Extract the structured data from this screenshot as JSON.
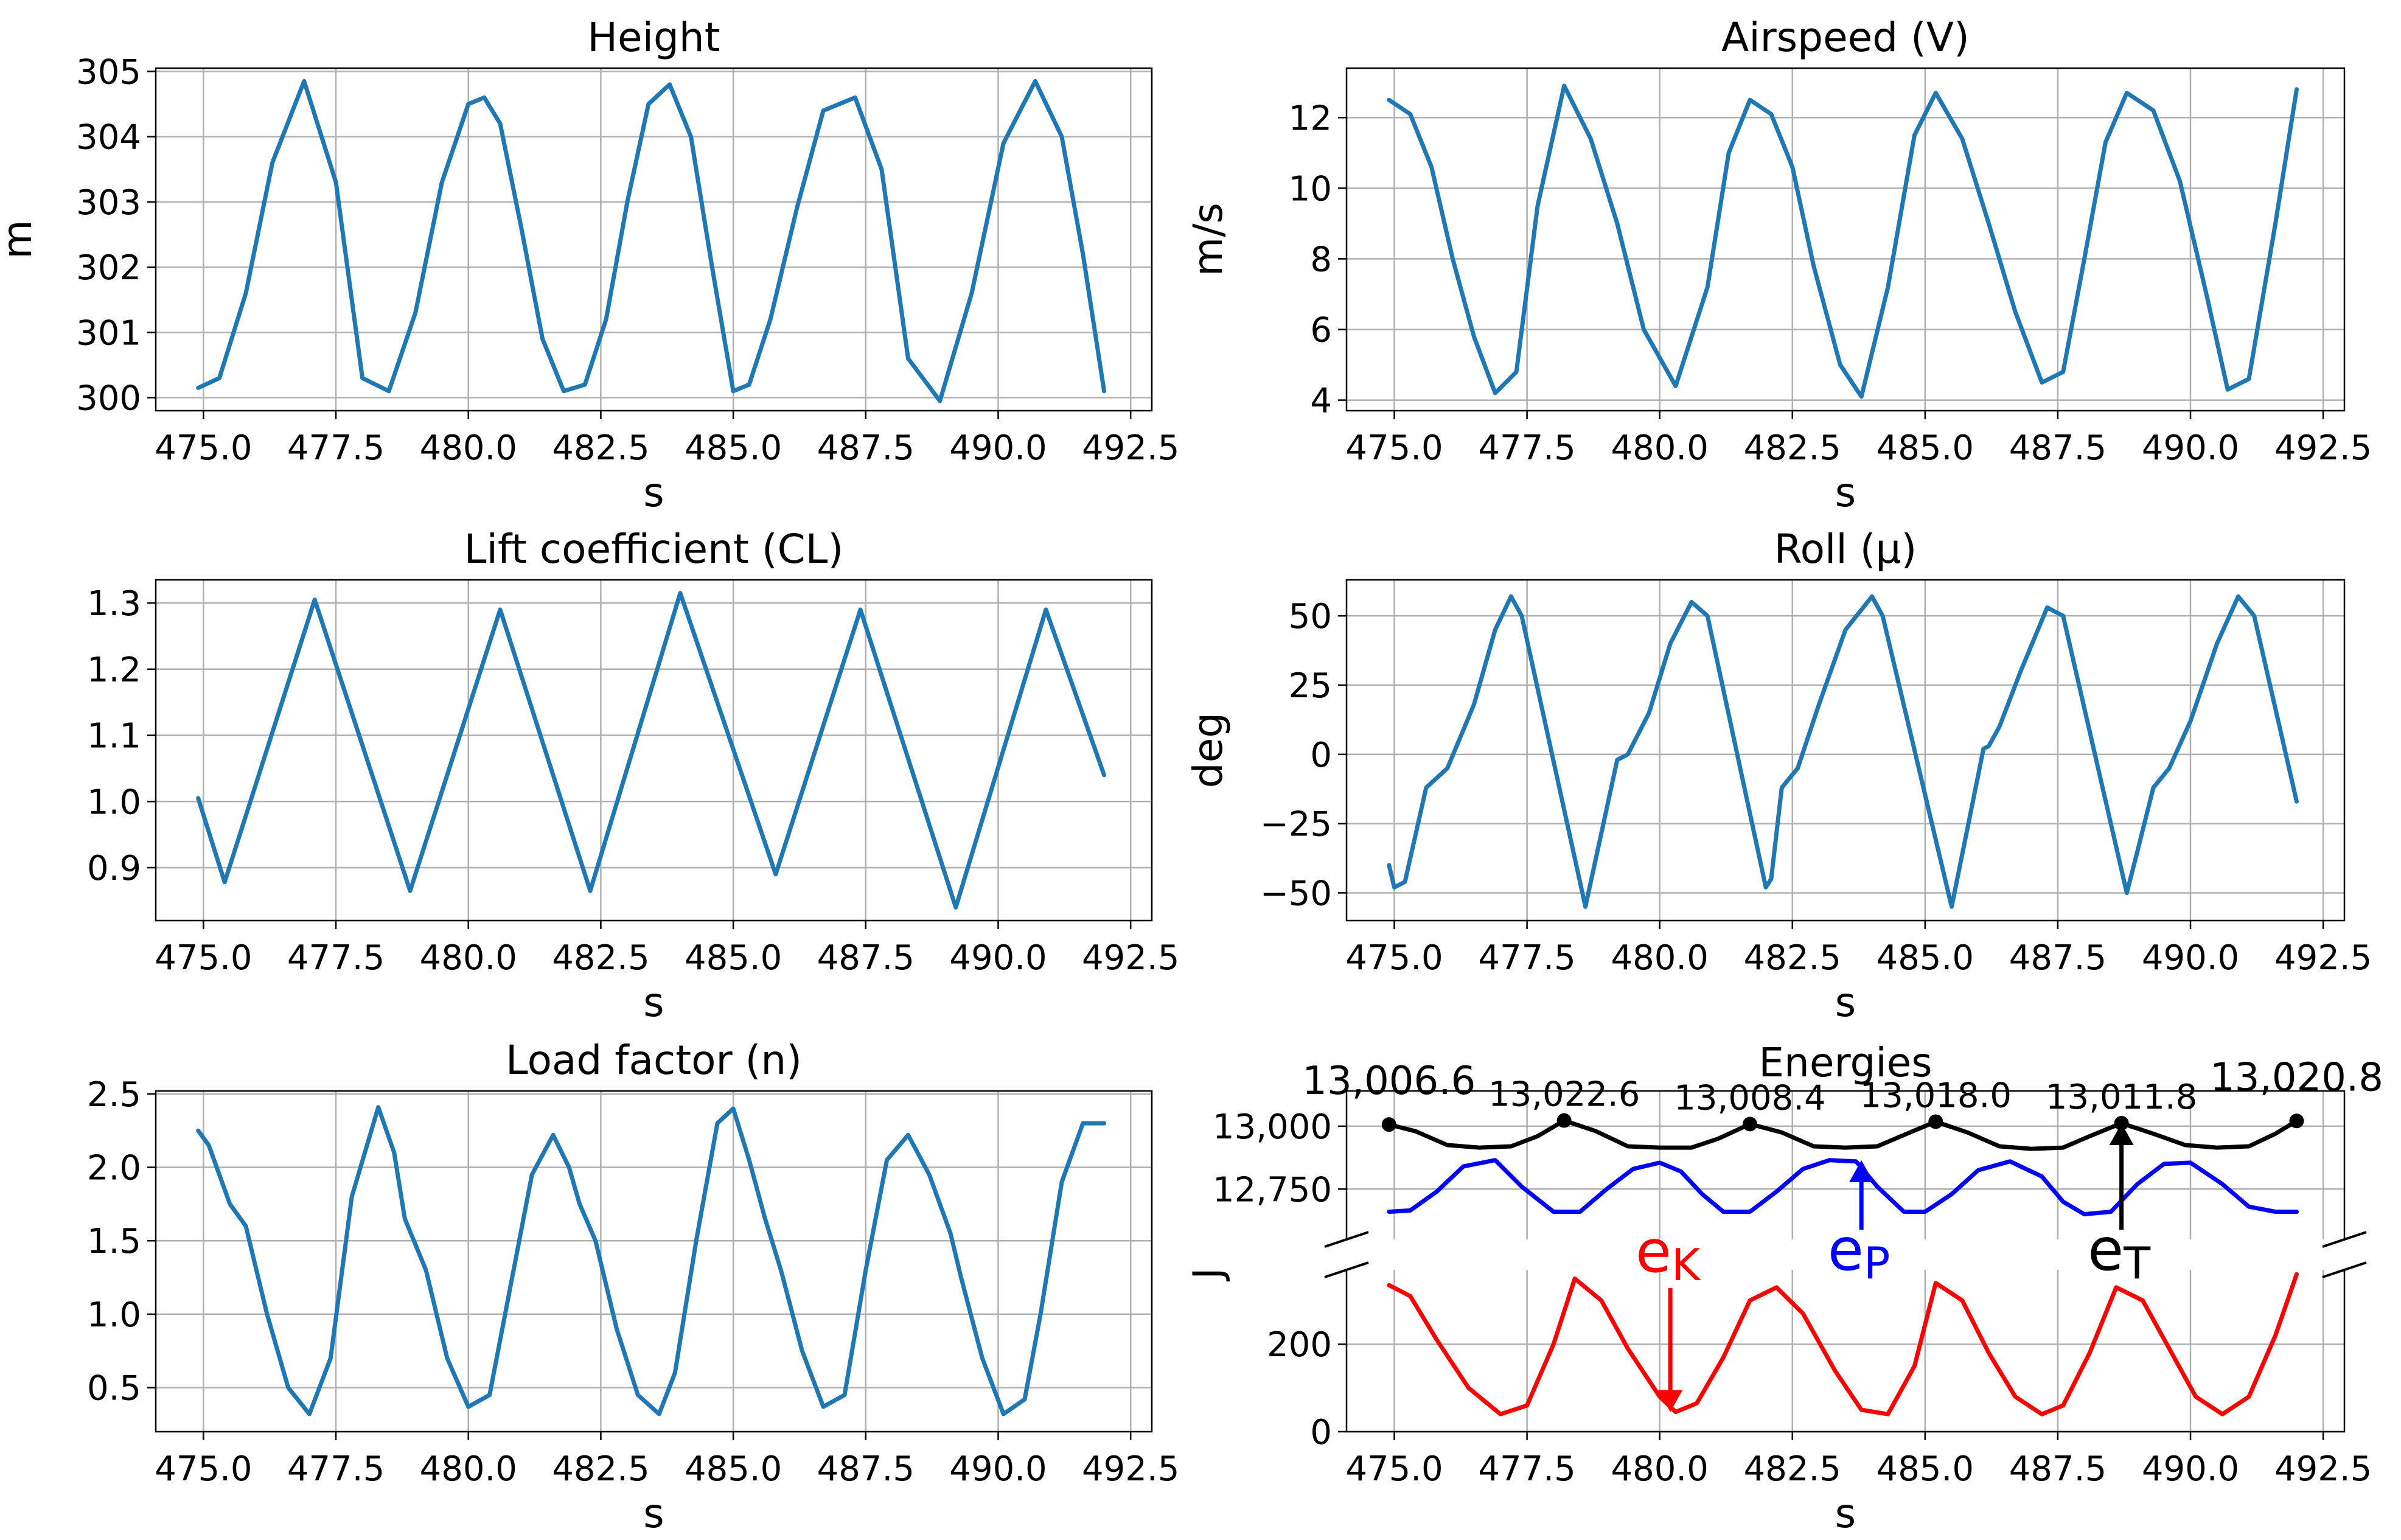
{
  "colors": {
    "line": "#1f77b4",
    "kinetic": "#ff0000",
    "potential": "#0000ff",
    "total": "#000000",
    "grid": "#b0b0b0"
  },
  "x_tick_labels": [
    "475.0",
    "477.5",
    "480.0",
    "482.5",
    "485.0",
    "487.5",
    "490.0",
    "492.5"
  ],
  "chart_data": [
    {
      "id": "height",
      "type": "line",
      "title": "Height",
      "xlabel": "s",
      "ylabel": "m",
      "xlim": [
        474.1,
        492.9
      ],
      "ylim": [
        299.8,
        305.05
      ],
      "yticks": [
        300,
        301,
        302,
        303,
        304,
        305
      ],
      "ytick_labels": [
        "300",
        "301",
        "302",
        "303",
        "304",
        "305"
      ],
      "grid": true,
      "series": [
        {
          "name": "Height",
          "x": [
            474.9,
            475.3,
            475.8,
            476.3,
            476.9,
            477.5,
            478.0,
            478.5,
            479.0,
            479.5,
            480.0,
            480.3,
            480.6,
            481.0,
            481.4,
            481.8,
            482.2,
            482.6,
            483.0,
            483.4,
            483.8,
            484.2,
            484.6,
            485.0,
            485.3,
            485.7,
            486.2,
            486.7,
            487.3,
            487.8,
            488.3,
            488.9,
            489.5,
            490.1,
            490.7,
            491.2,
            491.6,
            492.0
          ],
          "y": [
            300.15,
            300.3,
            301.6,
            303.6,
            304.85,
            303.3,
            300.3,
            300.1,
            301.3,
            303.3,
            304.5,
            304.6,
            304.2,
            302.6,
            300.9,
            300.1,
            300.2,
            301.2,
            303.0,
            304.5,
            304.8,
            304.0,
            302.0,
            300.1,
            300.2,
            301.2,
            302.9,
            304.4,
            304.6,
            303.5,
            300.6,
            299.95,
            301.6,
            303.9,
            304.85,
            304.0,
            302.2,
            300.1
          ]
        }
      ]
    },
    {
      "id": "airspeed",
      "type": "line",
      "title": "Airspeed (V)",
      "xlabel": "s",
      "ylabel": "m/s",
      "xlim": [
        474.1,
        492.9
      ],
      "ylim": [
        3.7,
        13.4
      ],
      "yticks": [
        4,
        6,
        8,
        10,
        12
      ],
      "ytick_labels": [
        "4",
        "6",
        "8",
        "10",
        "12"
      ],
      "grid": true,
      "series": [
        {
          "name": "Airspeed",
          "x": [
            474.9,
            475.3,
            475.7,
            476.1,
            476.5,
            476.9,
            477.3,
            477.7,
            478.2,
            478.7,
            479.2,
            479.7,
            480.3,
            480.9,
            481.3,
            481.7,
            482.1,
            482.5,
            482.9,
            483.4,
            483.8,
            484.3,
            484.8,
            485.2,
            485.7,
            486.2,
            486.7,
            487.2,
            487.6,
            488.0,
            488.4,
            488.8,
            489.3,
            489.8,
            490.3,
            490.7,
            491.1,
            491.6,
            492.0
          ],
          "y": [
            12.5,
            12.1,
            10.6,
            8.0,
            5.8,
            4.2,
            4.8,
            9.5,
            12.9,
            11.4,
            9.0,
            6.0,
            4.4,
            7.2,
            11.0,
            12.5,
            12.1,
            10.6,
            7.8,
            5.0,
            4.1,
            7.2,
            11.5,
            12.7,
            11.4,
            9.0,
            6.5,
            4.5,
            4.8,
            8.0,
            11.3,
            12.7,
            12.2,
            10.2,
            7.0,
            4.3,
            4.6,
            9.0,
            12.8
          ]
        }
      ]
    },
    {
      "id": "lift",
      "type": "line",
      "title": "Lift coefficient (CL)",
      "xlabel": "s",
      "ylabel": "",
      "xlim": [
        474.1,
        492.9
      ],
      "ylim": [
        0.82,
        1.335
      ],
      "yticks": [
        0.9,
        1.0,
        1.1,
        1.2,
        1.3
      ],
      "ytick_labels": [
        "0.9",
        "1.0",
        "1.1",
        "1.2",
        "1.3"
      ],
      "grid": true,
      "series": [
        {
          "name": "CL",
          "x": [
            474.9,
            475.4,
            477.1,
            478.9,
            480.6,
            482.3,
            484.0,
            485.8,
            487.4,
            489.2,
            490.9,
            492.0
          ],
          "y": [
            1.005,
            0.878,
            1.305,
            0.865,
            1.29,
            0.865,
            1.315,
            0.89,
            1.29,
            0.84,
            1.29,
            1.04
          ]
        }
      ]
    },
    {
      "id": "roll",
      "type": "line",
      "title": "Roll (μ)",
      "xlabel": "s",
      "ylabel": "deg",
      "xlim": [
        474.1,
        492.9
      ],
      "ylim": [
        -60,
        63
      ],
      "yticks": [
        -50,
        -25,
        0,
        25,
        50
      ],
      "ytick_labels": [
        "−50",
        "−25",
        "0",
        "25",
        "50"
      ],
      "grid": true,
      "series": [
        {
          "name": "Roll",
          "x": [
            474.9,
            475.0,
            475.2,
            475.6,
            476.0,
            476.5,
            476.9,
            477.2,
            477.4,
            478.6,
            479.2,
            479.4,
            479.8,
            480.2,
            480.6,
            480.9,
            482.0,
            482.1,
            482.3,
            482.6,
            483.0,
            483.5,
            484.0,
            484.2,
            485.5,
            486.1,
            486.2,
            486.4,
            486.8,
            487.3,
            487.6,
            488.8,
            489.0,
            489.3,
            489.6,
            490.0,
            490.5,
            490.9,
            491.2,
            492.0
          ],
          "y": [
            -40,
            -48,
            -46,
            -12,
            -5,
            18,
            45,
            57,
            50,
            -55,
            -2,
            0,
            15,
            40,
            55,
            50,
            -48,
            -45,
            -12,
            -5,
            18,
            45,
            57,
            50,
            -55,
            2,
            3,
            10,
            30,
            53,
            50,
            -50,
            -35,
            -12,
            -5,
            12,
            40,
            57,
            50,
            -17
          ]
        }
      ]
    },
    {
      "id": "load",
      "type": "line",
      "title": "Load factor (n)",
      "xlabel": "s",
      "ylabel": "",
      "xlim": [
        474.1,
        492.9
      ],
      "ylim": [
        0.2,
        2.52
      ],
      "yticks": [
        0.5,
        1.0,
        1.5,
        2.0,
        2.5
      ],
      "ytick_labels": [
        "0.5",
        "1.0",
        "1.5",
        "2.0",
        "2.5"
      ],
      "grid": true,
      "series": [
        {
          "name": "n",
          "x": [
            474.9,
            475.1,
            475.5,
            475.8,
            476.2,
            476.6,
            477.0,
            477.4,
            477.8,
            478.3,
            478.6,
            478.8,
            479.2,
            479.6,
            480.0,
            480.4,
            480.8,
            481.2,
            481.6,
            481.9,
            482.1,
            482.4,
            482.8,
            483.2,
            483.6,
            483.9,
            484.3,
            484.7,
            485.0,
            485.3,
            485.6,
            485.9,
            486.3,
            486.7,
            487.1,
            487.5,
            487.9,
            488.3,
            488.7,
            488.9,
            489.1,
            489.3,
            489.7,
            490.1,
            490.5,
            490.8,
            491.2,
            491.6,
            492.0
          ],
          "y": [
            2.25,
            2.15,
            1.75,
            1.6,
            1.0,
            0.5,
            0.32,
            0.7,
            1.8,
            2.41,
            2.1,
            1.65,
            1.3,
            0.7,
            0.37,
            0.45,
            1.2,
            1.95,
            2.22,
            2.0,
            1.75,
            1.5,
            0.9,
            0.45,
            0.32,
            0.6,
            1.5,
            2.3,
            2.4,
            2.05,
            1.65,
            1.3,
            0.75,
            0.37,
            0.45,
            1.3,
            2.05,
            2.22,
            1.95,
            1.75,
            1.55,
            1.25,
            0.7,
            0.32,
            0.42,
            1.0,
            1.9,
            2.3,
            2.3
          ]
        }
      ]
    },
    {
      "id": "energies",
      "type": "line",
      "title": "Energies",
      "xlabel": "s",
      "ylabel": "J",
      "xlim": [
        474.1,
        492.9
      ],
      "upper_ylim": [
        12550,
        13140
      ],
      "lower_ylim": [
        0,
        370
      ],
      "upper_yticks": [
        12750,
        13000
      ],
      "upper_ytick_labels": [
        "12,750",
        "13,000"
      ],
      "lower_yticks": [
        0,
        200
      ],
      "lower_ytick_labels": [
        "0",
        "200"
      ],
      "grid": true,
      "series": [
        {
          "name": "eK",
          "label": "eK",
          "panel": "lower",
          "x": [
            474.9,
            475.3,
            475.8,
            476.4,
            477.0,
            477.5,
            478.0,
            478.4,
            478.9,
            479.4,
            480.0,
            480.3,
            480.7,
            481.2,
            481.7,
            482.2,
            482.7,
            483.3,
            483.8,
            484.3,
            484.8,
            485.2,
            485.7,
            486.2,
            486.7,
            487.2,
            487.6,
            488.1,
            488.6,
            489.1,
            489.6,
            490.1,
            490.6,
            491.1,
            491.6,
            492.0
          ],
          "y": [
            335,
            310,
            210,
            100,
            40,
            60,
            200,
            350,
            300,
            190,
            80,
            45,
            65,
            170,
            300,
            330,
            270,
            140,
            50,
            40,
            150,
            340,
            300,
            180,
            80,
            40,
            60,
            180,
            330,
            300,
            190,
            80,
            40,
            80,
            220,
            360
          ]
        },
        {
          "name": "eP",
          "label": "eP",
          "panel": "upper",
          "x": [
            474.9,
            475.3,
            475.8,
            476.3,
            476.9,
            477.4,
            478.0,
            478.5,
            479.0,
            479.5,
            480.0,
            480.4,
            480.8,
            481.2,
            481.7,
            482.2,
            482.7,
            483.2,
            483.7,
            484.1,
            484.6,
            485.0,
            485.5,
            486.0,
            486.6,
            487.2,
            487.6,
            488.0,
            488.5,
            489.0,
            489.5,
            490.0,
            490.6,
            491.1,
            491.6,
            492.0
          ],
          "y": [
            12660,
            12665,
            12740,
            12840,
            12865,
            12760,
            12660,
            12660,
            12750,
            12830,
            12855,
            12820,
            12730,
            12660,
            12660,
            12740,
            12830,
            12865,
            12860,
            12760,
            12660,
            12660,
            12730,
            12825,
            12860,
            12800,
            12700,
            12650,
            12660,
            12770,
            12850,
            12855,
            12770,
            12680,
            12660,
            12660
          ]
        },
        {
          "name": "eT",
          "label": "eT",
          "panel": "upper",
          "x": [
            474.9,
            475.4,
            476.0,
            476.6,
            477.2,
            477.7,
            478.2,
            478.8,
            479.4,
            480.0,
            480.6,
            481.1,
            481.7,
            482.3,
            482.9,
            483.5,
            484.1,
            484.6,
            485.2,
            485.8,
            486.4,
            487.0,
            487.6,
            488.1,
            488.7,
            489.3,
            489.9,
            490.5,
            491.1,
            491.6,
            492.0
          ],
          "y": [
            13006.6,
            12980,
            12925,
            12915,
            12920,
            12960,
            13022.6,
            12980,
            12920,
            12915,
            12915,
            12950,
            13008.4,
            12975,
            12920,
            12915,
            12920,
            12965,
            13018.0,
            12975,
            12920,
            12910,
            12915,
            12960,
            13011.8,
            12970,
            12925,
            12915,
            12920,
            12970,
            13020.8
          ]
        }
      ],
      "peak_markers": [
        {
          "x": 474.9,
          "y": 13006.6,
          "label": "13,006.6"
        },
        {
          "x": 478.2,
          "y": 13022.6,
          "label": "13,022.6"
        },
        {
          "x": 481.7,
          "y": 13008.4,
          "label": "13,008.4"
        },
        {
          "x": 485.2,
          "y": 13018.0,
          "label": "13,018.0"
        },
        {
          "x": 488.7,
          "y": 13011.8,
          "label": "13,011.8"
        },
        {
          "x": 492.0,
          "y": 13020.8,
          "label": "13,020.8"
        }
      ],
      "annotations": [
        {
          "label_main": "e",
          "label_sub": "K",
          "color": "red",
          "target_x": 480.2,
          "target_y": 45,
          "panel": "lower"
        },
        {
          "label_main": "e",
          "label_sub": "P",
          "color": "blue",
          "target_x": 483.8,
          "target_y": 12865,
          "panel": "upper"
        },
        {
          "label_main": "e",
          "label_sub": "T",
          "color": "black",
          "target_x": 488.7,
          "target_y": 13011.8,
          "panel": "upper"
        }
      ]
    }
  ]
}
